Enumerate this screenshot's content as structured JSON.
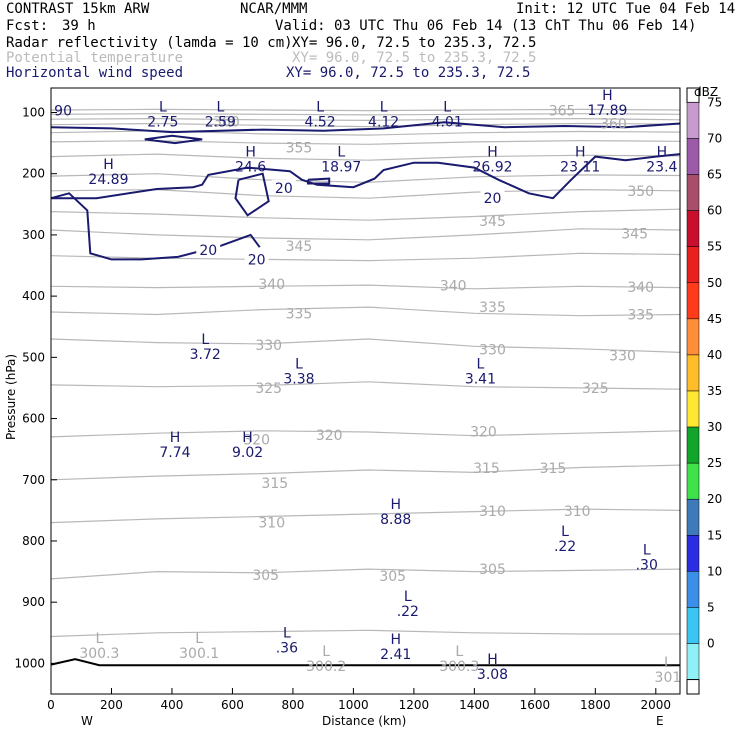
{
  "header": {
    "model": "CONTRAST 15km ARW",
    "org": "NCAR/MMM",
    "init": "Init: 12 UTC Tue 04 Feb 14",
    "fcst_label": "Fcst:",
    "fcst_value": "39 h",
    "valid": "Valid: 03 UTC Thu 06 Feb 14 (13 ChT Thu 06 Feb 14)",
    "fields": [
      {
        "name": "Radar reflectivity (lamda = 10 cm)",
        "xy": "XY=  96.0, 72.5 to 235.3, 72.5",
        "color": "#000000"
      },
      {
        "name": "Potential temperature",
        "xy": "XY=  96.0, 72.5 to 235.3, 72.5",
        "color": "#bbbbbb"
      },
      {
        "name": "Horizontal wind speed",
        "xy": "XY=  96.0, 72.5 to 235.3, 72.5",
        "color": "#1a1a6e"
      }
    ]
  },
  "chart_data": {
    "type": "contour-cross-section",
    "xlabel": "Distance (km)",
    "ylabel": "Pressure (hPa)",
    "xlim": [
      0,
      2080
    ],
    "ylim": [
      1050,
      60
    ],
    "x_ticks": [
      0,
      200,
      400,
      600,
      800,
      1000,
      1200,
      1400,
      1600,
      1800,
      2000
    ],
    "y_ticks": [
      100,
      200,
      300,
      400,
      500,
      600,
      700,
      800,
      900,
      1000
    ],
    "end_labels": {
      "left": "W",
      "right": "E"
    },
    "colorbar": {
      "unit": "dBZ",
      "levels": [
        {
          "value": "75",
          "color": "#c89bcf"
        },
        {
          "value": "70",
          "color": "#9d5aa9"
        },
        {
          "value": "65",
          "color": "#a84d6a"
        },
        {
          "value": "60",
          "color": "#c8102e"
        },
        {
          "value": "55",
          "color": "#e8201e"
        },
        {
          "value": "50",
          "color": "#ff3b1b"
        },
        {
          "value": "45",
          "color": "#ff8d3a"
        },
        {
          "value": "40",
          "color": "#ffbe29"
        },
        {
          "value": "35",
          "color": "#ffe733"
        },
        {
          "value": "30",
          "color": "#11a52b"
        },
        {
          "value": "25",
          "color": "#3ee34b"
        },
        {
          "value": "20",
          "color": "#3f7ab8"
        },
        {
          "value": "15",
          "color": "#2c2ce3"
        },
        {
          "value": "10",
          "color": "#3b8fe8"
        },
        {
          "value": "5",
          "color": "#3ac5f2"
        },
        {
          "value": "0",
          "color": "#8ff0f5"
        }
      ]
    },
    "theta_labels": [
      {
        "text": "365",
        "x": 1690,
        "p": 97
      },
      {
        "text": "360",
        "x": 580,
        "p": 115
      },
      {
        "text": "360",
        "x": 1860,
        "p": 118
      },
      {
        "text": "355",
        "x": 820,
        "p": 157
      },
      {
        "text": "350",
        "x": 1950,
        "p": 228
      },
      {
        "text": "345",
        "x": 820,
        "p": 318
      },
      {
        "text": "345",
        "x": 1460,
        "p": 277
      },
      {
        "text": "345",
        "x": 1930,
        "p": 298
      },
      {
        "text": "340",
        "x": 730,
        "p": 380
      },
      {
        "text": "340",
        "x": 1330,
        "p": 383
      },
      {
        "text": "340",
        "x": 1950,
        "p": 385
      },
      {
        "text": "335",
        "x": 820,
        "p": 428
      },
      {
        "text": "335",
        "x": 1460,
        "p": 418
      },
      {
        "text": "335",
        "x": 1950,
        "p": 430
      },
      {
        "text": "330",
        "x": 720,
        "p": 480
      },
      {
        "text": "330",
        "x": 1460,
        "p": 487
      },
      {
        "text": "330",
        "x": 1890,
        "p": 497
      },
      {
        "text": "325",
        "x": 720,
        "p": 550
      },
      {
        "text": "325",
        "x": 1800,
        "p": 550
      },
      {
        "text": "320",
        "x": 680,
        "p": 634
      },
      {
        "text": "320",
        "x": 920,
        "p": 627
      },
      {
        "text": "320",
        "x": 1430,
        "p": 621
      },
      {
        "text": "315",
        "x": 740,
        "p": 705
      },
      {
        "text": "315",
        "x": 1440,
        "p": 681
      },
      {
        "text": "315",
        "x": 1660,
        "p": 681
      },
      {
        "text": "310",
        "x": 730,
        "p": 770
      },
      {
        "text": "310",
        "x": 1460,
        "p": 751
      },
      {
        "text": "310",
        "x": 1740,
        "p": 751
      },
      {
        "text": "305",
        "x": 710,
        "p": 856
      },
      {
        "text": "305",
        "x": 1130,
        "p": 857
      },
      {
        "text": "305",
        "x": 1460,
        "p": 846
      }
    ],
    "wind_contour_labels": [
      {
        "text": "20",
        "x": 770,
        "p": 223
      },
      {
        "text": "20",
        "x": 520,
        "p": 325
      },
      {
        "text": "20",
        "x": 680,
        "p": 340
      },
      {
        "text": "20",
        "x": 1460,
        "p": 240
      }
    ],
    "wind_extrema": [
      {
        "kind": "L",
        "value": "2.75",
        "x": 370,
        "p": 98
      },
      {
        "kind": "L",
        "value": "2.59",
        "x": 560,
        "p": 98
      },
      {
        "kind": "L",
        "value": "4.52",
        "x": 890,
        "p": 98
      },
      {
        "kind": "L",
        "value": "4.12",
        "x": 1100,
        "p": 98
      },
      {
        "kind": "L",
        "value": "4.01",
        "x": 1310,
        "p": 98
      },
      {
        "kind": "H",
        "value": "17.89",
        "x": 1840,
        "p": 80
      },
      {
        "kind": "H",
        "value": "24.89",
        "x": 190,
        "p": 192
      },
      {
        "kind": "H",
        "value": "24.6",
        "x": 660,
        "p": 172
      },
      {
        "kind": "L",
        "value": "18.97",
        "x": 960,
        "p": 172
      },
      {
        "kind": "H",
        "value": "26.92",
        "x": 1460,
        "p": 172
      },
      {
        "kind": "H",
        "value": "23.11",
        "x": 1750,
        "p": 172
      },
      {
        "kind": "H",
        "value": "23.4",
        "x": 2020,
        "p": 172
      },
      {
        "kind": "L",
        "value": "3.72",
        "x": 510,
        "p": 478
      },
      {
        "kind": "L",
        "value": "3.38",
        "x": 820,
        "p": 518
      },
      {
        "kind": "L",
        "value": "3.41",
        "x": 1420,
        "p": 518
      },
      {
        "kind": "H",
        "value": "7.74",
        "x": 410,
        "p": 638
      },
      {
        "kind": "H",
        "value": "9.02",
        "x": 650,
        "p": 638
      },
      {
        "kind": "H",
        "value": "8.88",
        "x": 1140,
        "p": 748
      },
      {
        "kind": "L",
        "value": ".22",
        "x": 1700,
        "p": 792
      },
      {
        "kind": "L",
        "value": ".30",
        "x": 1970,
        "p": 822
      },
      {
        "kind": "L",
        "value": ".22",
        "x": 1180,
        "p": 898
      },
      {
        "kind": "L",
        "value": ".36",
        "x": 780,
        "p": 958
      },
      {
        "kind": "H",
        "value": "2.41",
        "x": 1140,
        "p": 968
      },
      {
        "kind": "H",
        "value": "3.08",
        "x": 1460,
        "p": 1001
      }
    ],
    "theta_extrema": [
      {
        "kind": "L",
        "value": "300.3",
        "x": 160,
        "p": 967
      },
      {
        "kind": "L",
        "value": "300.1",
        "x": 490,
        "p": 967
      },
      {
        "kind": "L",
        "value": "300.2",
        "x": 910,
        "p": 988
      },
      {
        "kind": "L",
        "value": "300.3",
        "x": 1350,
        "p": 988
      },
      {
        "kind": "L",
        "value": "301",
        "x": 2040,
        "p": 1006
      }
    ],
    "edge_labels": [
      {
        "text": "90",
        "x": 40,
        "p": 97
      }
    ]
  }
}
